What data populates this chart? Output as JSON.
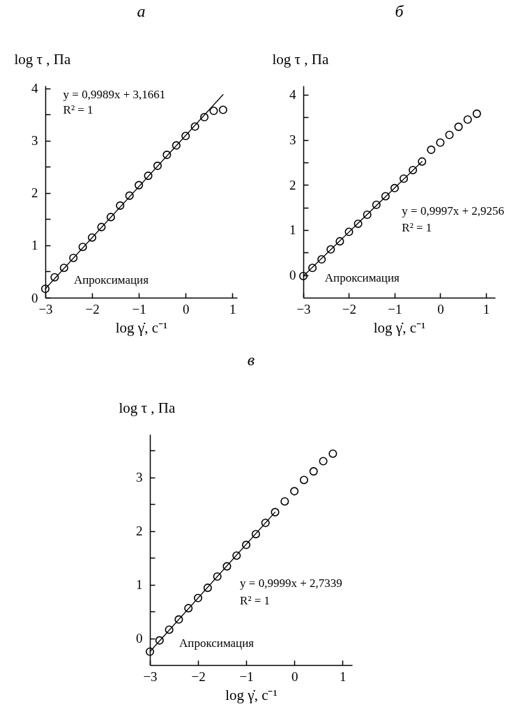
{
  "chart_data": [
    {
      "type": "scatter",
      "title": "а",
      "xlabel": "log γ̇, с⁻¹",
      "ylabel": "log τ , Па",
      "xlim": [
        -3,
        1.1
      ],
      "ylim": [
        0,
        4.05
      ],
      "xticks": [
        -3,
        -2,
        -1,
        0,
        1
      ],
      "yticks": [
        0,
        {
          "value": 0.5,
          "label": null
        },
        1,
        {
          "value": 1.5,
          "label": null
        },
        2,
        {
          "value": 2.5,
          "label": null
        },
        3,
        {
          "value": 3.5,
          "label": null
        },
        4
      ],
      "x": [
        -3,
        -2.8,
        -2.6,
        -2.4,
        -2.2,
        -2,
        -1.8,
        -1.6,
        -1.4,
        -1.2,
        -1,
        -0.8,
        -0.6,
        -0.4,
        -0.2,
        0,
        0.2,
        0.4,
        0.6,
        0.8
      ],
      "series": [
        {
          "marker": "circle",
          "color": "#000000",
          "values": [
            0.17,
            0.39,
            0.57,
            0.76,
            0.97,
            1.15,
            1.35,
            1.54,
            1.76,
            1.95,
            2.15,
            2.33,
            2.52,
            2.73,
            2.91,
            3.09,
            3.27,
            3.45,
            3.57,
            3.59
          ]
        },
        {
          "type": "line",
          "color": "#000000",
          "x": [
            -3,
            0.8
          ],
          "values": [
            0.17,
            3.88
          ]
        }
      ],
      "annotations": [
        "y = 0,9989x + 3,1661",
        "R² = 1",
        "Апроксимация"
      ]
    },
    {
      "type": "scatter",
      "title": "б",
      "xlabel": "log γ̇, с⁻¹",
      "ylabel": "log τ , Па",
      "xlim": [
        -3,
        1.2
      ],
      "ylim": [
        -0.5,
        4.2
      ],
      "xticks": [
        -3,
        -2,
        -1,
        0,
        1
      ],
      "yticks": [
        0,
        {
          "value": 0.5,
          "label": null
        },
        1,
        {
          "value": 1.5,
          "label": null
        },
        2,
        {
          "value": 2.5,
          "label": null
        },
        3,
        {
          "value": 3.5,
          "label": null
        },
        4
      ],
      "x": [
        -3,
        -2.8,
        -2.6,
        -2.4,
        -2.2,
        -2,
        -1.8,
        -1.6,
        -1.4,
        -1.2,
        -1,
        -0.8,
        -0.6,
        -0.4,
        -0.2,
        0,
        0.2,
        0.4,
        0.6,
        0.8
      ],
      "series": [
        {
          "marker": "circle",
          "color": "#000000",
          "values": [
            -0.02,
            0.16,
            0.35,
            0.57,
            0.75,
            0.96,
            1.14,
            1.34,
            1.56,
            1.75,
            1.93,
            2.14,
            2.33,
            2.52,
            2.78,
            2.94,
            3.11,
            3.29,
            3.45,
            3.58
          ]
        },
        {
          "type": "line",
          "color": "#000000",
          "x": [
            -3,
            -0.4
          ],
          "values": [
            -0.02,
            2.52
          ]
        }
      ],
      "annotations": [
        "y = 0,9997x + 2,9256",
        "R² = 1",
        "Апроксимация"
      ]
    },
    {
      "type": "scatter",
      "title": "в",
      "xlabel": "log γ̇, с⁻¹",
      "ylabel": "log τ , Па",
      "xlim": [
        -3,
        1.2
      ],
      "ylim": [
        -0.5,
        3.8
      ],
      "xticks": [
        -3,
        -2,
        -1,
        0,
        1
      ],
      "yticks": [
        0,
        {
          "value": 0.5,
          "label": null
        },
        1,
        {
          "value": 1.5,
          "label": null
        },
        2,
        {
          "value": 2.5,
          "label": null
        },
        3,
        {
          "value": 3.5,
          "label": null
        }
      ],
      "x": [
        -3,
        -2.8,
        -2.6,
        -2.4,
        -2.2,
        -2,
        -1.8,
        -1.6,
        -1.4,
        -1.2,
        -1,
        -0.8,
        -0.6,
        -0.4,
        -0.2,
        0,
        0.2,
        0.4,
        0.6,
        0.8
      ],
      "series": [
        {
          "marker": "circle",
          "color": "#000000",
          "values": [
            -0.25,
            -0.04,
            0.16,
            0.35,
            0.56,
            0.75,
            0.94,
            1.15,
            1.34,
            1.54,
            1.74,
            1.94,
            2.15,
            2.35,
            2.55,
            2.74,
            2.95,
            3.11,
            3.3,
            3.44
          ]
        },
        {
          "type": "line",
          "color": "#000000",
          "x": [
            -3,
            -0.4
          ],
          "values": [
            -0.25,
            2.35
          ]
        }
      ],
      "annotations": [
        "y = 0,9999x + 2,7339",
        "R² = 1",
        "Апроксимация"
      ]
    }
  ]
}
